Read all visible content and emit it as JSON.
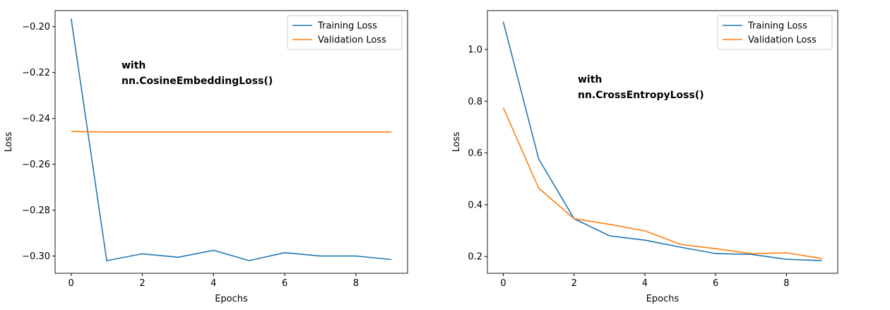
{
  "chart_data": [
    {
      "type": "line",
      "title": "",
      "xlabel": "Epochs",
      "ylabel": "Loss",
      "x": [
        0,
        1,
        2,
        3,
        4,
        5,
        6,
        7,
        8,
        9
      ],
      "xticks": [
        0,
        2,
        4,
        6,
        8
      ],
      "yticks": [
        -0.3,
        -0.28,
        -0.26,
        -0.24,
        -0.22,
        -0.2
      ],
      "ytick_labels": [
        "−0.30",
        "−0.28",
        "−0.26",
        "−0.24",
        "−0.22",
        "−0.20"
      ],
      "xlim": [
        -0.45,
        9.45
      ],
      "ylim": [
        -0.3075,
        -0.193
      ],
      "series": [
        {
          "name": "Training Loss",
          "color": "#1f77b4",
          "values": [
            -0.1965,
            -0.302,
            -0.299,
            -0.3005,
            -0.2975,
            -0.302,
            -0.2985,
            -0.3,
            -0.3,
            -0.3015
          ]
        },
        {
          "name": "Validation Loss",
          "color": "#ff7f0e",
          "values": [
            -0.2457,
            -0.2459,
            -0.2459,
            -0.2459,
            -0.2459,
            -0.2459,
            -0.2459,
            -0.2459,
            -0.2459,
            -0.2459
          ]
        }
      ],
      "legend": "top-right",
      "annotation": [
        "with",
        "nn.CosineEmbeddingLoss()"
      ]
    },
    {
      "type": "line",
      "title": "",
      "xlabel": "Epochs",
      "ylabel": "Loss",
      "x": [
        0,
        1,
        2,
        3,
        4,
        5,
        6,
        7,
        8,
        9
      ],
      "xticks": [
        0,
        2,
        4,
        6,
        8
      ],
      "yticks": [
        0.2,
        0.4,
        0.6,
        0.8,
        1.0
      ],
      "ytick_labels": [
        "0.2",
        "0.4",
        "0.6",
        "0.8",
        "1.0"
      ],
      "xlim": [
        -0.45,
        9.45
      ],
      "ylim": [
        0.135,
        1.15
      ],
      "series": [
        {
          "name": "Training Loss",
          "color": "#1f77b4",
          "values": [
            1.107,
            0.577,
            0.346,
            0.28,
            0.263,
            0.236,
            0.211,
            0.208,
            0.189,
            0.184
          ]
        },
        {
          "name": "Validation Loss",
          "color": "#ff7f0e",
          "values": [
            0.775,
            0.464,
            0.346,
            0.324,
            0.299,
            0.247,
            0.23,
            0.211,
            0.214,
            0.192
          ]
        }
      ],
      "legend": "top-right",
      "annotation": [
        "with",
        "nn.CrossEntropyLoss()"
      ]
    }
  ]
}
